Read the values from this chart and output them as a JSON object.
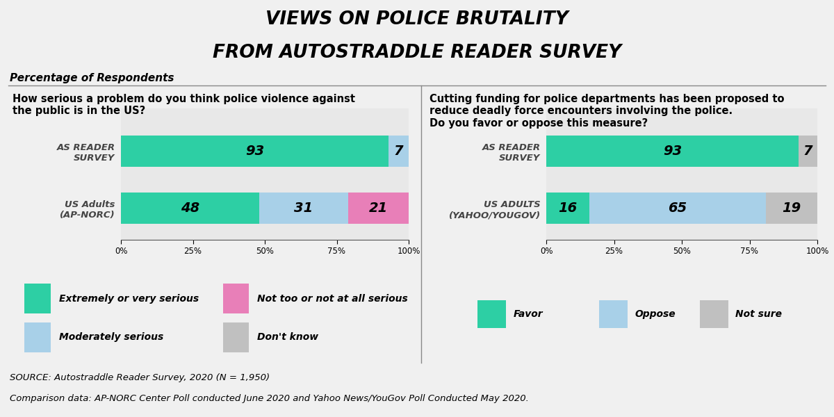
{
  "title_line1": "VIEWS ON POLICE BRUTALITY",
  "title_line2": "FROM AUTOSTRADDLE READER SURVEY",
  "subtitle": "Percentage of Respondents",
  "bg_color": "#f0f0f0",
  "panel_bg": "#e8e8e8",
  "legend_bg": "#f5deb3",
  "q1_question": "How serious a problem do you think police violence against\nthe public is in the US?",
  "q1_rows": [
    "AS READER\nSURVEY",
    "US Adults\n(AP-NORC)"
  ],
  "q1_data": [
    [
      93,
      7,
      0,
      0
    ],
    [
      48,
      31,
      21,
      0
    ]
  ],
  "q1_colors": [
    "#2dcfa4",
    "#a8d0e8",
    "#e87fb8",
    "#c0c0c0"
  ],
  "q1_legend_labels": [
    "Extremely or very serious",
    "Moderately serious",
    "Not too or not at all serious",
    "Don't know"
  ],
  "q2_question": "Cutting funding for police departments has been proposed to\nreduce deadly force encounters involving the police.\nDo you favor or oppose this measure?",
  "q2_rows": [
    "AS READER\nSURVEY",
    "US ADULTS\n(YAHOO/YOUGOV)"
  ],
  "q2_data": [
    [
      93,
      0,
      7
    ],
    [
      16,
      65,
      19
    ]
  ],
  "q2_colors": [
    "#2dcfa4",
    "#a8d0e8",
    "#c0c0c0"
  ],
  "q2_legend_labels": [
    "Favor",
    "Oppose",
    "Not sure"
  ],
  "source_text1": "SOURCE: Autostraddle Reader Survey, 2020 (N = 1,950)",
  "source_text2": "Comparison data: AP-NORC Center Poll conducted June 2020 and Yahoo News/YouGov Poll Conducted May 2020."
}
